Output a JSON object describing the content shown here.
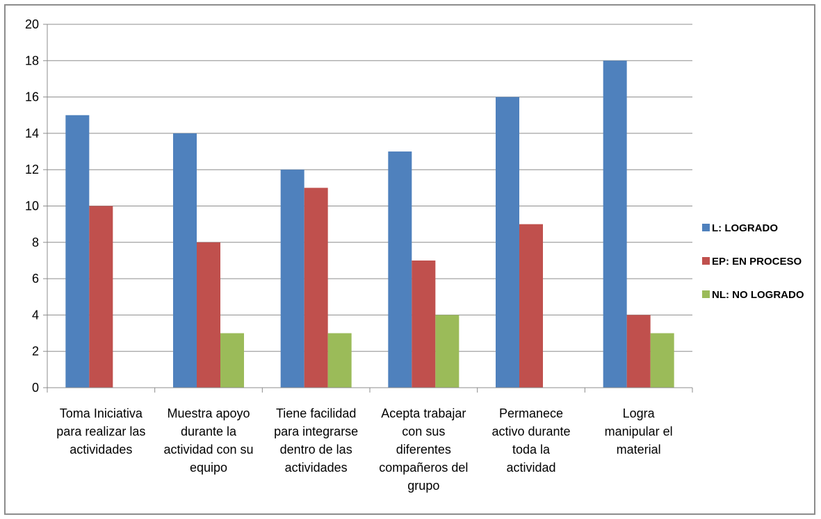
{
  "chart_data": {
    "type": "bar",
    "categories": [
      [
        "Toma Iniciativa",
        "para realizar las",
        "actividades"
      ],
      [
        "Muestra apoyo",
        "durante la",
        "actividad con su",
        "equipo"
      ],
      [
        "Tiene facilidad",
        "para integrarse",
        "dentro de las",
        "actividades"
      ],
      [
        "Acepta trabajar",
        "con sus",
        "diferentes",
        "compañeros del",
        "grupo"
      ],
      [
        "Permanece",
        "activo durante",
        "toda la",
        "actividad"
      ],
      [
        "Logra",
        "manipular el",
        "material"
      ]
    ],
    "series": [
      {
        "name": "L: LOGRADO",
        "color": "#4f81bd",
        "values": [
          15,
          14,
          12,
          13,
          16,
          18
        ]
      },
      {
        "name": "EP: EN PROCESO",
        "color": "#c0504d",
        "values": [
          10,
          8,
          11,
          7,
          9,
          4
        ]
      },
      {
        "name": "NL: NO LOGRADO",
        "color": "#9bbb59",
        "values": [
          0,
          3,
          3,
          4,
          0,
          3
        ]
      }
    ],
    "ylim": [
      0,
      20
    ],
    "yticks": [
      0,
      2,
      4,
      6,
      8,
      10,
      12,
      14,
      16,
      18,
      20
    ],
    "grid": true,
    "legend_position": "right"
  }
}
